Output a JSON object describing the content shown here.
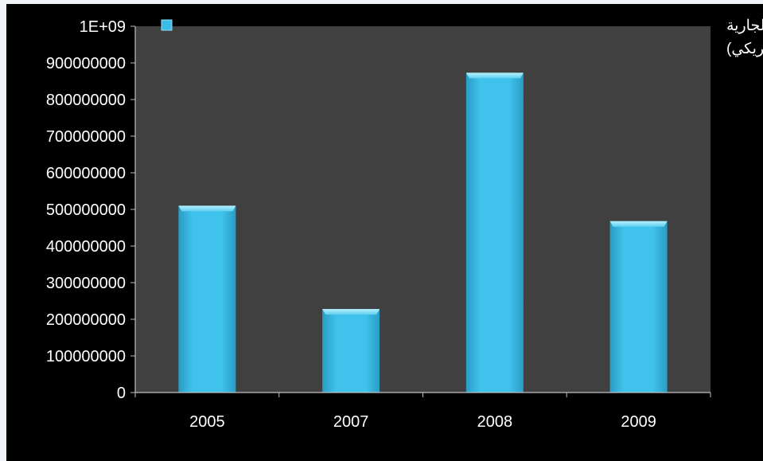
{
  "chart_data": {
    "type": "bar",
    "categories": [
      "2005",
      "2007",
      "2008",
      "2009"
    ],
    "series": [
      {
        "name": "الاستثمار في المياه والصرف الصحي بمشاركة القطاع الخاص (بالأسعار الجارية للدولار الأمريكي)",
        "values": [
          510000000,
          228000000,
          873000000,
          468000000
        ]
      }
    ],
    "yticks": [
      "0",
      "100000000",
      "200000000",
      "300000000",
      "400000000",
      "500000000",
      "600000000",
      "700000000",
      "800000000",
      "900000000",
      "1E+09"
    ],
    "ylim": [
      0,
      1000000000
    ],
    "legend": {
      "position": "top-right",
      "line1": "الاستثمار في المياه والصرف الصحي بمشاركة القطاع الخاص (بالأسعار الجارية",
      "line2": "للدولار الأمريكي)"
    },
    "colors": {
      "plot_background": "#404040",
      "bar": "#3bbde6",
      "bar_top": "#8fe1f7",
      "axis": "#bfbfbf",
      "text": "#ffffff"
    }
  }
}
